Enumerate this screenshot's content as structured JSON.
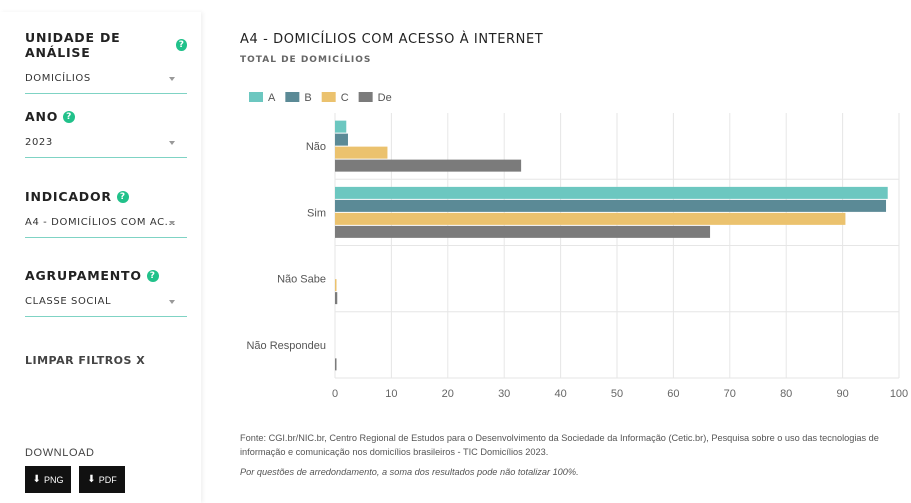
{
  "sidebar": {
    "unidade": {
      "label": "UNIDADE DE ANÁLISE",
      "value": "DOMICÍLIOS"
    },
    "ano": {
      "label": "ANO",
      "value": "2023"
    },
    "indicador": {
      "label": "INDICADOR",
      "value": "A4 - DOMICÍLIOS COM AC..."
    },
    "agrupamento": {
      "label": "AGRUPAMENTO",
      "value": "CLASSE SOCIAL"
    },
    "help_glyph": "?",
    "clear_label": "LIMPAR FILTROS X",
    "download_label": "DOWNLOAD",
    "png_label": "PNG",
    "pdf_label": "PDF"
  },
  "colors": {
    "accent": "#21c18a",
    "A": "#6cc7c0",
    "B": "#5b8a96",
    "C": "#ebc26e",
    "De": "#7b7b7b"
  },
  "chart_data": {
    "type": "bar",
    "orientation": "horizontal",
    "title": "A4 - DOMICÍLIOS COM ACESSO À INTERNET",
    "subtitle": "TOTAL DE DOMICÍLIOS",
    "categories": [
      "Não",
      "Sim",
      "Não Sabe",
      "Não Respondeu"
    ],
    "series": [
      {
        "name": "A",
        "color": "#6cc7c0",
        "values": [
          2,
          98,
          0,
          0
        ]
      },
      {
        "name": "B",
        "color": "#5b8a96",
        "values": [
          2.3,
          97.7,
          0,
          0
        ]
      },
      {
        "name": "C",
        "color": "#ebc26e",
        "values": [
          9.3,
          90.5,
          0.1,
          0
        ]
      },
      {
        "name": "De",
        "color": "#7b7b7b",
        "values": [
          33,
          66.5,
          0.4,
          0.1
        ]
      }
    ],
    "xlim": [
      0,
      100
    ],
    "xticks": [
      0,
      10,
      20,
      30,
      40,
      50,
      60,
      70,
      80,
      90,
      100
    ],
    "grid": true,
    "legend": "top-left"
  },
  "footnote": "Fonte: CGI.br/NIC.br, Centro Regional de Estudos para o Desenvolvimento da Sociedade da Informação (Cetic.br), Pesquisa sobre o uso das tecnologias de informação e comunicação nos domicílios brasileiros - TIC Domicílios 2023.",
  "note": "Por questões de arredondamento, a soma dos resultados pode não totalizar 100%."
}
